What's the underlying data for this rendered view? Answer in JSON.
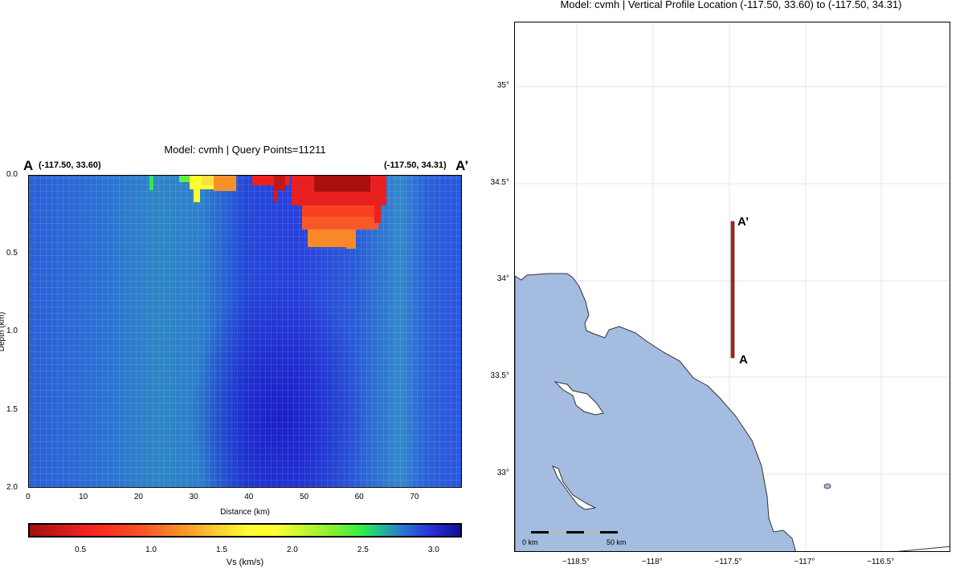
{
  "chart_data": [
    {
      "type": "heatmap",
      "title": "Model: cvmh | Query Points=11211",
      "start_label": "A",
      "start_coord": "(-117.50, 33.60)",
      "end_label": "A’",
      "end_coord": "(-117.50, 34.31)",
      "xlabel": "Distance (km)",
      "ylabel": "Depth (km)",
      "xlim": [
        0,
        78.5
      ],
      "ylim": [
        2.0,
        0.0
      ],
      "xticks": [
        "0",
        "10",
        "20",
        "30",
        "40",
        "50",
        "60",
        "70"
      ],
      "yticks": [
        "0.0",
        "0.5",
        "1.0",
        "1.5",
        "2.0"
      ],
      "colorbar": {
        "label": "Vs (km/s)",
        "range": [
          0.13,
          3.2
        ],
        "ticks": [
          "0.5",
          "1.0",
          "1.5",
          "2.0",
          "2.5",
          "3.0"
        ],
        "colormap": "rainbow (dark red → navy)"
      }
    },
    {
      "type": "map",
      "title": "Model: cvmh | Vertical Profile Location (-117.50, 33.60) to (-117.50, 34.31)",
      "lon_ticks": [
        "−118.5°",
        "−118°",
        "−117.5°",
        "−117°",
        "−116.5°"
      ],
      "lat_ticks": [
        "35°",
        "34.5°",
        "34°",
        "33.5°",
        "33°"
      ],
      "profile": {
        "start": [
          -117.5,
          33.6
        ],
        "end": [
          -117.5,
          34.31
        ],
        "start_label": "A",
        "end_label": "A’",
        "color": "#b01e1e"
      },
      "scale_bar": {
        "left": "0 km",
        "right": "50 km"
      },
      "ocean_color": "#a3bce0"
    }
  ]
}
